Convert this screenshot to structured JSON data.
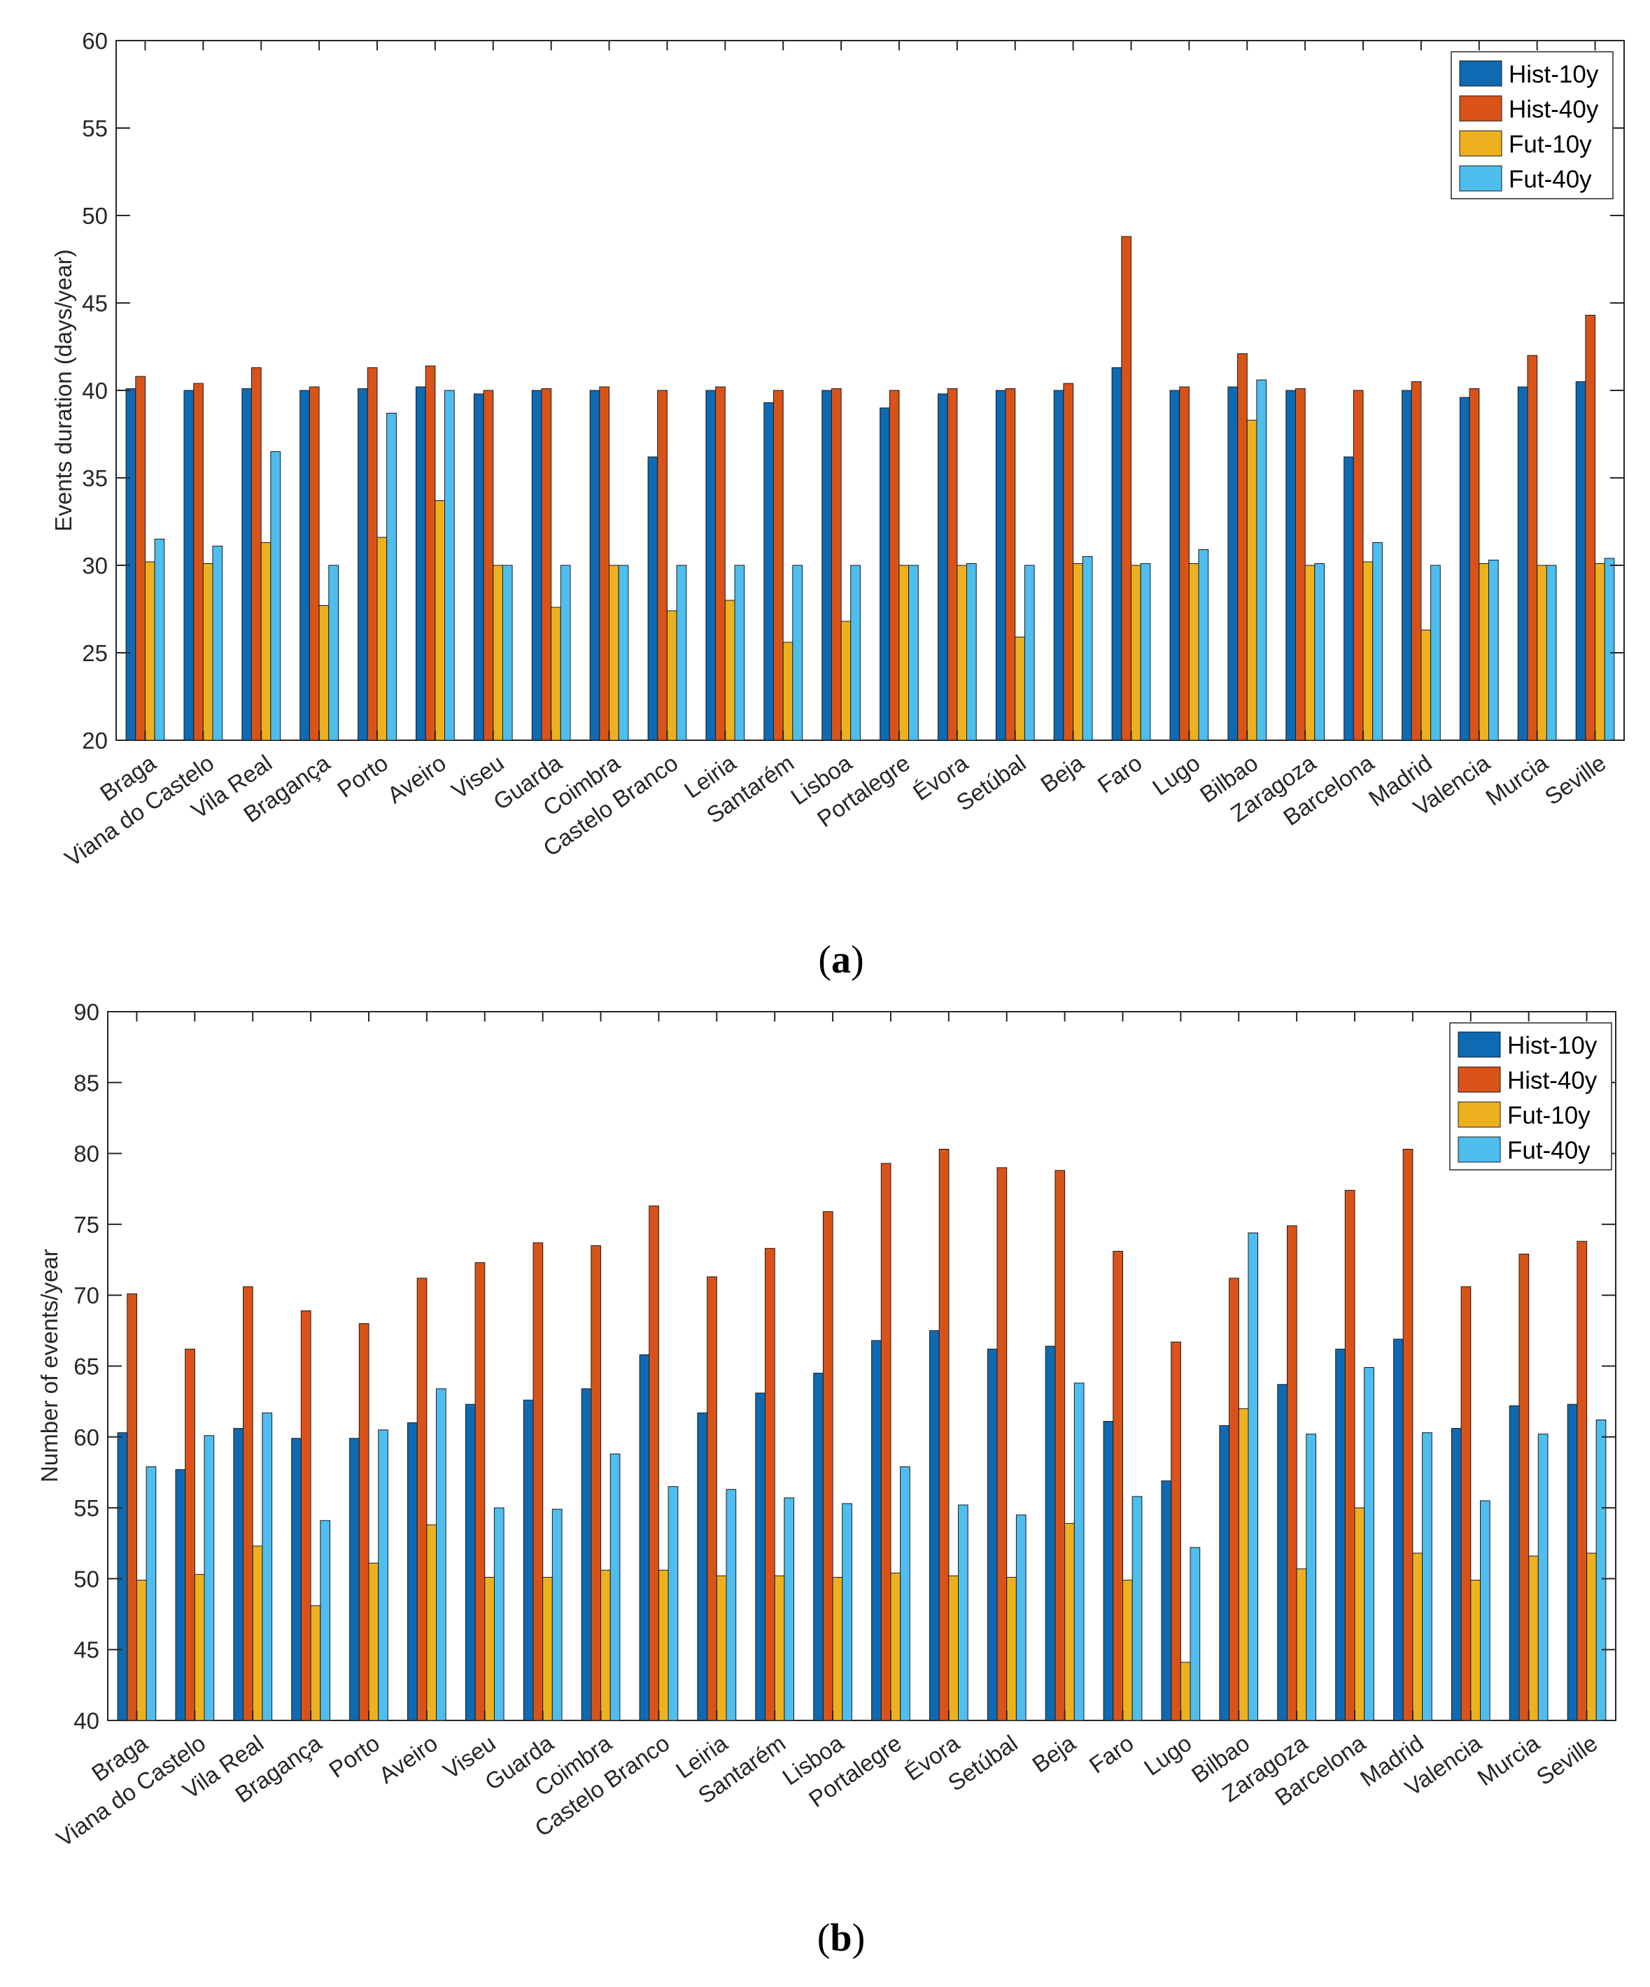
{
  "chart_data": [
    {
      "type": "bar",
      "ylabel": "Events duration (days/year)",
      "ylim": [
        20,
        60
      ],
      "yticks": [
        20,
        25,
        30,
        35,
        40,
        45,
        50,
        55,
        60
      ],
      "grid": false,
      "legend_position": "top-right",
      "caption_letter": "a",
      "categories": [
        "Braga",
        "Viana do Castelo",
        "Vila Real",
        "Bragança",
        "Porto",
        "Aveiro",
        "Viseu",
        "Guarda",
        "Coimbra",
        "Castelo Branco",
        "Leiria",
        "Santarém",
        "Lisboa",
        "Portalegre",
        "Évora",
        "Setúbal",
        "Beja",
        "Faro",
        "Lugo",
        "Bilbao",
        "Zaragoza",
        "Barcelona",
        "Madrid",
        "Valencia",
        "Murcia",
        "Seville"
      ],
      "series": [
        {
          "name": "Hist-10y",
          "color": "#0d6ab3",
          "values": [
            40.1,
            40.0,
            40.1,
            40.0,
            40.1,
            40.2,
            39.8,
            40.0,
            40.0,
            36.2,
            40.0,
            39.3,
            40.0,
            39.0,
            39.8,
            40.0,
            40.0,
            41.3,
            40.0,
            40.2,
            40.0,
            36.2,
            40.0,
            39.6,
            40.2,
            40.5
          ]
        },
        {
          "name": "Hist-40y",
          "color": "#d95319",
          "values": [
            40.8,
            40.4,
            41.3,
            40.2,
            41.3,
            41.4,
            40.0,
            40.1,
            40.2,
            40.0,
            40.2,
            40.0,
            40.1,
            40.0,
            40.1,
            40.1,
            40.4,
            48.8,
            40.2,
            42.1,
            40.1,
            40.0,
            40.5,
            40.1,
            42.0,
            44.3
          ]
        },
        {
          "name": "Fut-10y",
          "color": "#edb120",
          "values": [
            30.2,
            30.1,
            31.3,
            27.7,
            31.6,
            33.7,
            30.0,
            27.6,
            30.0,
            27.4,
            28.0,
            25.6,
            26.8,
            30.0,
            30.0,
            25.9,
            30.1,
            30.0,
            30.1,
            38.3,
            30.0,
            30.2,
            26.3,
            30.1,
            30.0,
            30.1
          ]
        },
        {
          "name": "Fut-40y",
          "color": "#4dbeee",
          "values": [
            31.5,
            31.1,
            36.5,
            30.0,
            38.7,
            40.0,
            30.0,
            30.0,
            30.0,
            30.0,
            30.0,
            30.0,
            30.0,
            30.0,
            30.1,
            30.0,
            30.5,
            30.1,
            30.9,
            40.6,
            30.1,
            31.3,
            30.0,
            30.3,
            30.0,
            30.4
          ]
        }
      ]
    },
    {
      "type": "bar",
      "ylabel": "Number of events/year",
      "ylim": [
        40,
        90
      ],
      "yticks": [
        40,
        45,
        50,
        55,
        60,
        65,
        70,
        75,
        80,
        85,
        90
      ],
      "grid": false,
      "legend_position": "top-right",
      "caption_letter": "b",
      "categories": [
        "Braga",
        "Viana do Castelo",
        "Vila Real",
        "Bragança",
        "Porto",
        "Aveiro",
        "Viseu",
        "Guarda",
        "Coimbra",
        "Castelo Branco",
        "Leiria",
        "Santarém",
        "Lisboa",
        "Portalegre",
        "Évora",
        "Setúbal",
        "Beja",
        "Faro",
        "Lugo",
        "Bilbao",
        "Zaragoza",
        "Barcelona",
        "Madrid",
        "Valencia",
        "Murcia",
        "Seville"
      ],
      "series": [
        {
          "name": "Hist-10y",
          "color": "#0d6ab3",
          "values": [
            60.3,
            57.7,
            60.6,
            59.9,
            59.9,
            61.0,
            62.3,
            62.6,
            63.4,
            65.8,
            61.7,
            63.1,
            64.5,
            66.8,
            67.5,
            66.2,
            66.4,
            61.1,
            56.9,
            60.8,
            63.7,
            66.2,
            66.9,
            60.6,
            62.2,
            62.3
          ]
        },
        {
          "name": "Hist-40y",
          "color": "#d95319",
          "values": [
            70.1,
            66.2,
            70.6,
            68.9,
            68.0,
            71.2,
            72.3,
            73.7,
            73.5,
            76.3,
            71.3,
            73.3,
            75.9,
            79.3,
            80.3,
            79.0,
            78.8,
            73.1,
            66.7,
            71.2,
            74.9,
            77.4,
            80.3,
            70.6,
            72.9,
            73.8
          ]
        },
        {
          "name": "Fut-10y",
          "color": "#edb120",
          "values": [
            49.9,
            50.3,
            52.3,
            48.1,
            51.1,
            53.8,
            50.1,
            50.1,
            50.6,
            50.6,
            50.2,
            50.2,
            50.1,
            50.4,
            50.2,
            50.1,
            53.9,
            49.9,
            44.1,
            62.0,
            50.7,
            55.0,
            51.8,
            49.9,
            51.6,
            51.8
          ]
        },
        {
          "name": "Fut-40y",
          "color": "#4dbeee",
          "values": [
            57.9,
            60.1,
            61.7,
            54.1,
            60.5,
            63.4,
            55.0,
            54.9,
            58.8,
            56.5,
            56.3,
            55.7,
            55.3,
            57.9,
            55.2,
            54.5,
            63.8,
            55.8,
            52.2,
            74.4,
            60.2,
            64.9,
            60.3,
            55.5,
            60.2,
            61.2
          ]
        }
      ]
    }
  ]
}
